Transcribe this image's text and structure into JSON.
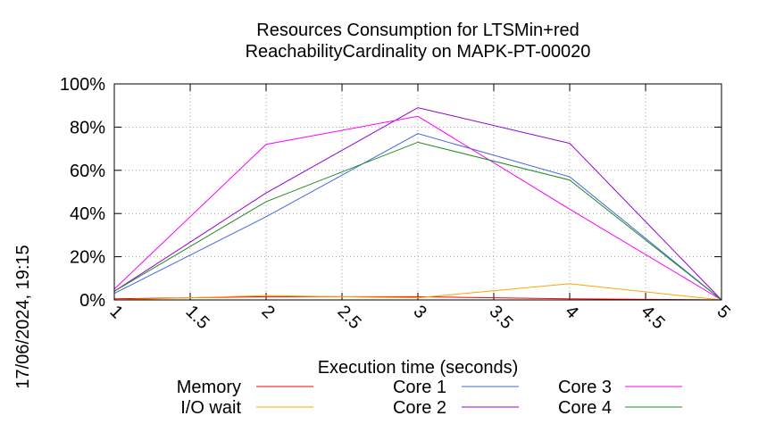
{
  "chart_data": {
    "type": "line",
    "title": [
      "Resources Consumption for LTSMin+red",
      "ReachabilityCardinality on MAPK-PT-00020"
    ],
    "xlabel": "Execution time (seconds)",
    "ylabel": "",
    "side_label": "17/06/2024, 19:15",
    "xlim": [
      1,
      5
    ],
    "ylim": [
      0,
      100
    ],
    "x_ticks": [
      "1",
      "1.5",
      "2",
      "2.5",
      "3",
      "3.5",
      "4",
      "4.5",
      "5"
    ],
    "y_ticks": [
      "0%",
      "20%",
      "40%",
      "60%",
      "80%",
      "100%"
    ],
    "grid": true,
    "legend_position": "bottom",
    "x": [
      1,
      2,
      3,
      4,
      5
    ],
    "series": [
      {
        "name": "Memory",
        "color": "#ff0000",
        "values": [
          0.5,
          1.5,
          1.5,
          0.5,
          0
        ]
      },
      {
        "name": "I/O wait",
        "color": "#ffa500",
        "values": [
          0,
          2,
          1,
          7.5,
          0
        ]
      },
      {
        "name": "Core 1",
        "color": "#4169e1",
        "values": [
          3,
          38.5,
          77,
          57,
          0
        ]
      },
      {
        "name": "Core 2",
        "color": "#9400d3",
        "values": [
          4,
          49.5,
          89,
          72.5,
          0
        ]
      },
      {
        "name": "Core 3",
        "color": "#ff00ff",
        "values": [
          5,
          72,
          85,
          42,
          0
        ]
      },
      {
        "name": "Core 4",
        "color": "#228b22",
        "values": [
          4,
          45.5,
          73,
          55.5,
          0
        ]
      }
    ]
  }
}
